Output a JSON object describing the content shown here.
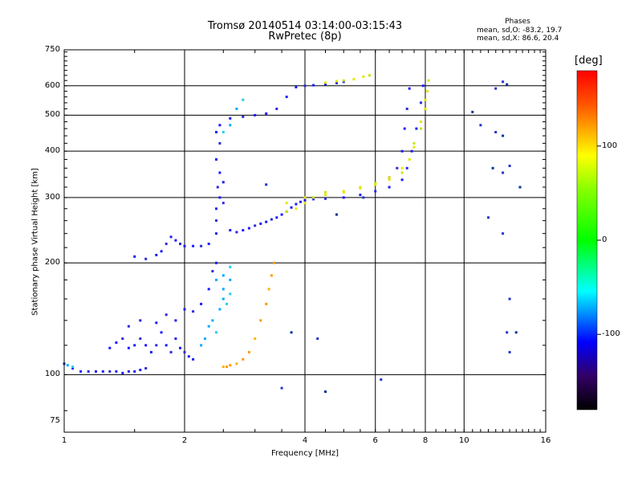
{
  "chart_data": {
    "type": "scatter",
    "title": "Tromsø 20140514 03:14:00-03:15:43",
    "subtitle": "RwPretec (8p)",
    "xlabel": "Frequency [MHz]",
    "ylabel": "Stationary phase Virtual Height [km]",
    "x_scale": "log",
    "y_scale": "log",
    "xlim": [
      1,
      16
    ],
    "ylim": [
      70,
      750
    ],
    "x_ticks": [
      1,
      2,
      4,
      6,
      8,
      10,
      16
    ],
    "x_tick_labels": [
      "1",
      "2",
      "4",
      "6",
      "8",
      "10",
      "16"
    ],
    "y_ticks": [
      75,
      100,
      200,
      300,
      400,
      500,
      600,
      750
    ],
    "y_tick_labels": [
      "75",
      "100",
      "200",
      "300",
      "400",
      "500",
      "600",
      "750"
    ],
    "grid": true,
    "stats": {
      "heading": "Phases",
      "o_line": "mean, sd,O: -83.2, 19.7",
      "x_line": "mean, sd,X:  86.6, 20.4"
    },
    "colorbar": {
      "unit": "[deg]",
      "min": -180,
      "max": 180,
      "ticks": [
        100,
        0,
        -100
      ],
      "tick_labels": [
        "100",
        "0",
        "-100"
      ]
    },
    "series": [
      {
        "values": [
          [
            1.0,
            107
          ],
          [
            1.05,
            104
          ],
          [
            1.1,
            102
          ],
          [
            1.15,
            102
          ],
          [
            1.2,
            102
          ],
          [
            1.25,
            102
          ],
          [
            1.3,
            102
          ],
          [
            1.35,
            102
          ],
          [
            1.4,
            101
          ],
          [
            1.45,
            102
          ],
          [
            1.5,
            102
          ],
          [
            1.55,
            103
          ],
          [
            1.6,
            104
          ],
          [
            1.3,
            118
          ],
          [
            1.35,
            122
          ],
          [
            1.4,
            125
          ],
          [
            1.45,
            118
          ],
          [
            1.5,
            120
          ],
          [
            1.55,
            125
          ],
          [
            1.6,
            120
          ],
          [
            1.65,
            115
          ],
          [
            1.7,
            120
          ],
          [
            1.75,
            130
          ],
          [
            1.8,
            120
          ],
          [
            1.85,
            115
          ],
          [
            1.9,
            125
          ],
          [
            1.95,
            118
          ],
          [
            2.0,
            115
          ],
          [
            2.05,
            112
          ],
          [
            2.1,
            110
          ],
          [
            1.45,
            135
          ],
          [
            1.55,
            140
          ],
          [
            1.7,
            138
          ],
          [
            1.8,
            145
          ],
          [
            1.9,
            140
          ],
          [
            2.0,
            150
          ],
          [
            2.1,
            148
          ],
          [
            2.2,
            155
          ],
          [
            2.3,
            170
          ],
          [
            2.35,
            190
          ],
          [
            2.4,
            200
          ],
          [
            1.5,
            208
          ],
          [
            1.6,
            205
          ],
          [
            1.7,
            210
          ],
          [
            1.75,
            215
          ],
          [
            1.8,
            225
          ],
          [
            1.85,
            235
          ],
          [
            1.9,
            230
          ],
          [
            1.95,
            225
          ],
          [
            2.0,
            222
          ],
          [
            2.1,
            222
          ],
          [
            2.2,
            222
          ],
          [
            2.3,
            225
          ],
          [
            2.4,
            240
          ],
          [
            2.4,
            260
          ],
          [
            2.4,
            280
          ],
          [
            2.45,
            300
          ],
          [
            2.42,
            320
          ],
          [
            2.45,
            350
          ],
          [
            2.4,
            380
          ],
          [
            2.45,
            420
          ],
          [
            2.4,
            450
          ],
          [
            2.45,
            470
          ],
          [
            2.5,
            290
          ],
          [
            2.5,
            330
          ],
          [
            2.6,
            245
          ],
          [
            2.7,
            242
          ],
          [
            2.8,
            245
          ],
          [
            2.9,
            248
          ],
          [
            3.0,
            252
          ],
          [
            3.1,
            255
          ],
          [
            3.2,
            258
          ],
          [
            3.3,
            262
          ],
          [
            3.4,
            265
          ],
          [
            3.5,
            270
          ],
          [
            3.6,
            275
          ],
          [
            3.7,
            282
          ],
          [
            3.8,
            288
          ],
          [
            3.9,
            292
          ],
          [
            4.0,
            295
          ],
          [
            4.2,
            297
          ],
          [
            4.5,
            298
          ],
          [
            5.0,
            300
          ],
          [
            5.5,
            305
          ],
          [
            6.0,
            312
          ],
          [
            6.5,
            320
          ],
          [
            7.0,
            335
          ],
          [
            7.2,
            360
          ],
          [
            7.4,
            400
          ],
          [
            7.6,
            460
          ],
          [
            7.8,
            540
          ],
          [
            7.9,
            600
          ],
          [
            2.6,
            490
          ],
          [
            2.8,
            495
          ],
          [
            3.0,
            500
          ],
          [
            3.2,
            505
          ],
          [
            3.4,
            520
          ],
          [
            3.6,
            560
          ],
          [
            3.8,
            595
          ],
          [
            4.0,
            600
          ],
          [
            4.2,
            602
          ],
          [
            4.5,
            605
          ],
          [
            4.8,
            610
          ],
          [
            5.0,
            615
          ],
          [
            6.5,
            340
          ],
          [
            6.8,
            360
          ],
          [
            7.0,
            400
          ],
          [
            7.1,
            460
          ],
          [
            7.2,
            520
          ],
          [
            7.3,
            590
          ]
        ]
      },
      {
        "values": [
          [
            3.6,
            275
          ],
          [
            3.8,
            280
          ],
          [
            4.0,
            290
          ],
          [
            4.2,
            300
          ],
          [
            4.5,
            305
          ],
          [
            5.0,
            310
          ],
          [
            5.5,
            318
          ],
          [
            6.0,
            325
          ],
          [
            6.5,
            335
          ],
          [
            7.0,
            350
          ],
          [
            7.3,
            380
          ],
          [
            7.5,
            410
          ],
          [
            7.8,
            460
          ],
          [
            8.0,
            520
          ],
          [
            8.1,
            580
          ],
          [
            8.15,
            620
          ],
          [
            3.6,
            290
          ],
          [
            4.0,
            300
          ],
          [
            4.5,
            310
          ],
          [
            5.0,
            312
          ],
          [
            5.5,
            320
          ],
          [
            6.0,
            328
          ],
          [
            6.5,
            340
          ],
          [
            7.0,
            360
          ],
          [
            7.5,
            420
          ],
          [
            7.8,
            480
          ],
          [
            8.0,
            550
          ],
          [
            5.0,
            620
          ],
          [
            5.3,
            625
          ],
          [
            5.6,
            635
          ],
          [
            5.8,
            640
          ],
          [
            4.5,
            612
          ],
          [
            4.8,
            618
          ]
        ]
      },
      {
        "values": [
          [
            2.5,
            105
          ],
          [
            2.55,
            105
          ],
          [
            2.6,
            106
          ],
          [
            2.7,
            107
          ],
          [
            2.8,
            110
          ],
          [
            2.9,
            115
          ],
          [
            3.0,
            125
          ],
          [
            3.1,
            140
          ],
          [
            3.2,
            155
          ],
          [
            3.25,
            170
          ],
          [
            3.3,
            185
          ],
          [
            3.35,
            200
          ]
        ]
      },
      {
        "values": [
          [
            2.5,
            450
          ],
          [
            2.6,
            470
          ],
          [
            2.7,
            520
          ],
          [
            2.8,
            550
          ],
          [
            2.5,
            170
          ],
          [
            2.6,
            180
          ],
          [
            2.6,
            195
          ],
          [
            2.5,
            185
          ],
          [
            2.4,
            180
          ],
          [
            2.6,
            165
          ],
          [
            2.5,
            160
          ],
          [
            2.45,
            150
          ],
          [
            2.55,
            155
          ],
          [
            2.35,
            140
          ],
          [
            2.3,
            135
          ],
          [
            2.4,
            130
          ],
          [
            2.2,
            120
          ],
          [
            2.25,
            125
          ],
          [
            1.05,
            105
          ],
          [
            1.02,
            106
          ]
        ]
      },
      {
        "values": [
          [
            10.5,
            510
          ],
          [
            11.0,
            470
          ],
          [
            12.0,
            450
          ],
          [
            12.5,
            440
          ],
          [
            12.5,
            350
          ],
          [
            13.0,
            365
          ],
          [
            11.8,
            360
          ],
          [
            12.0,
            590
          ],
          [
            12.5,
            615
          ],
          [
            12.8,
            605
          ],
          [
            11.5,
            265
          ],
          [
            12.5,
            240
          ],
          [
            13.8,
            320
          ],
          [
            13.0,
            160
          ],
          [
            12.8,
            130
          ],
          [
            13.5,
            130
          ],
          [
            13.0,
            115
          ],
          [
            3.5,
            92
          ],
          [
            4.5,
            90
          ],
          [
            6.2,
            97
          ],
          [
            4.3,
            125
          ],
          [
            3.7,
            130
          ],
          [
            3.2,
            325
          ],
          [
            5.6,
            300
          ],
          [
            4.8,
            270
          ]
        ]
      }
    ]
  }
}
